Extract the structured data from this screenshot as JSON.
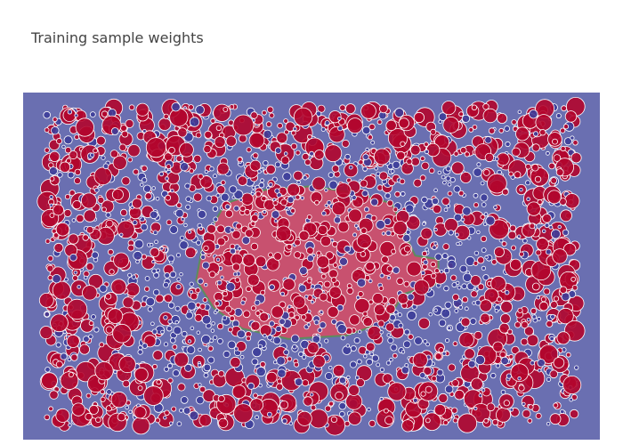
{
  "chart_data": {
    "type": "scatter",
    "title": "Training sample weights",
    "xlabel": "",
    "ylabel": "",
    "grid": false,
    "legend": "none",
    "colors": {
      "background_region": "#6a6fb1",
      "foreground_region": "#c8516f",
      "region_border": "#5d8c5e",
      "class_red": "#b2062e",
      "class_blue": "#3d3d9a",
      "marker_outline": "#ffffff"
    },
    "regions": [
      {
        "name": "",
        "description": "",
        "shape": "irregular-central-blob",
        "x_range": [
          0.3,
          0.72
        ],
        "y_range": [
          0.25,
          0.72
        ]
      }
    ],
    "series": [
      {
        "class": "red",
        "note": "",
        "size_rule": "weight",
        "sample_count_estimate": 1300
      },
      {
        "class": "blue",
        "note": "",
        "size_rule": "weight",
        "sample_count_estimate": 1300
      }
    ]
  }
}
